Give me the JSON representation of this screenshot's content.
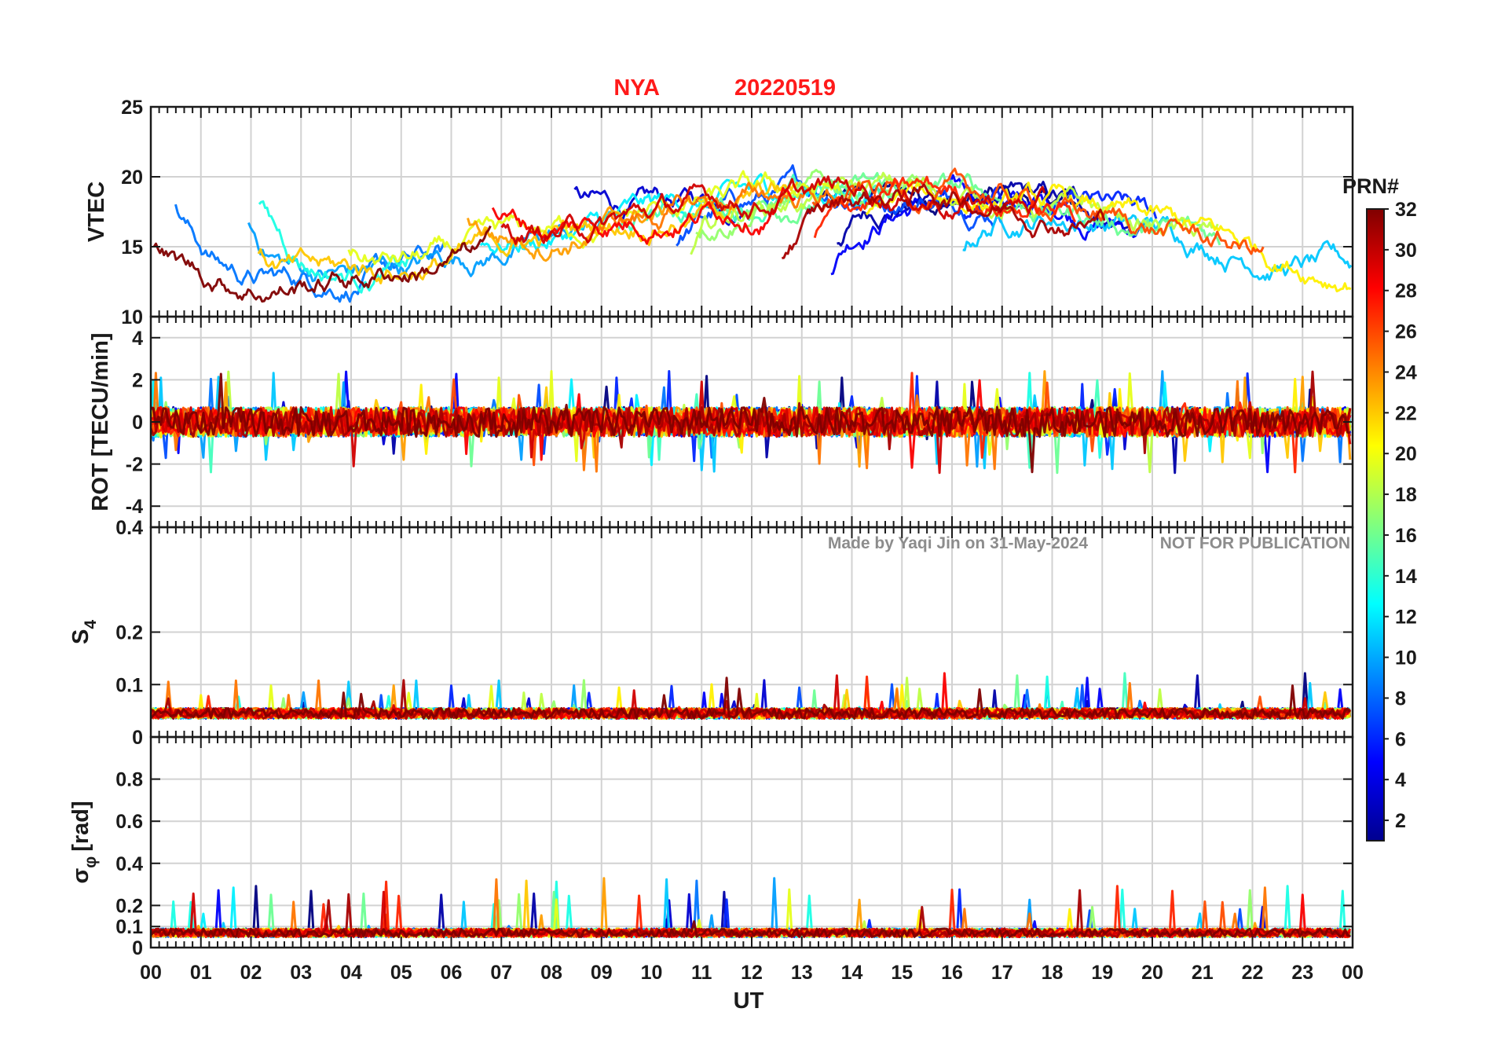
{
  "title": {
    "station": "NYA",
    "date": "20220519"
  },
  "watermark": {
    "author": "Made by Yaqi Jin on 31-May-2024",
    "notice": "NOT FOR PUBLICATION"
  },
  "colorbar": {
    "label": "PRN#",
    "ticks": [
      2,
      4,
      6,
      8,
      10,
      12,
      14,
      16,
      18,
      20,
      22,
      24,
      26,
      28,
      30,
      32
    ],
    "range": [
      1,
      32
    ],
    "colormap": "jet"
  },
  "chart_data": [
    {
      "type": "line",
      "panel": "vtec",
      "ylabel": "VTEC",
      "ylim": [
        10,
        25
      ],
      "yticks": [
        10,
        15,
        20,
        25
      ],
      "grid": true,
      "series_note": "one line per GPS satellite PRN, colored by PRN",
      "xlim": [
        0,
        24
      ]
    },
    {
      "type": "line",
      "panel": "rot",
      "ylabel": "ROT [TECU/min]",
      "ylim": [
        -5,
        5
      ],
      "yticks": [
        -4,
        -2,
        0,
        2,
        4
      ],
      "grid": true,
      "xlim": [
        0,
        24
      ]
    },
    {
      "type": "line",
      "panel": "s4",
      "ylabel_main": "S",
      "ylabel_sub": "4",
      "ylim": [
        0,
        0.4
      ],
      "yticks": [
        0,
        0.1,
        0.2,
        0.4
      ],
      "grid": true,
      "xlim": [
        0,
        24
      ]
    },
    {
      "type": "line",
      "panel": "sigma_phi",
      "ylabel_main": "σ",
      "ylabel_sub": "φ",
      "ylabel_unit": "[rad]",
      "ylim": [
        0,
        1.0
      ],
      "yticks": [
        0,
        0.1,
        0.2,
        0.4,
        0.6,
        0.8
      ],
      "grid": true,
      "xlim": [
        0,
        24
      ]
    }
  ],
  "xaxis": {
    "label": "UT",
    "ticks": [
      "00",
      "01",
      "02",
      "03",
      "04",
      "05",
      "06",
      "07",
      "08",
      "09",
      "10",
      "11",
      "12",
      "13",
      "14",
      "15",
      "16",
      "17",
      "18",
      "19",
      "20",
      "21",
      "22",
      "23",
      "00"
    ]
  }
}
